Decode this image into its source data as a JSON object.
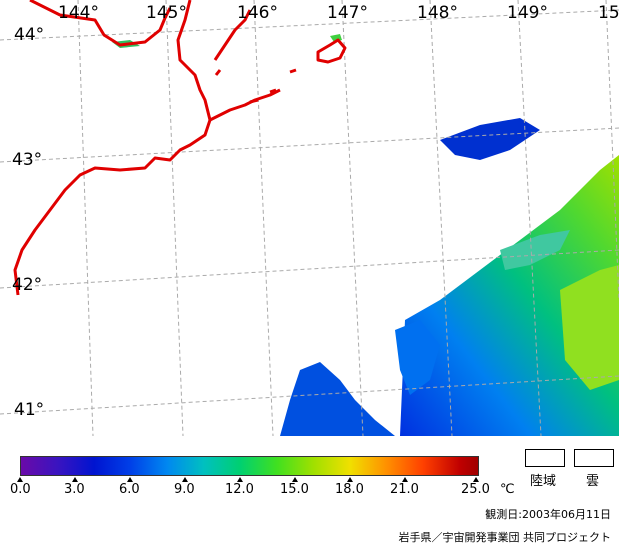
{
  "map": {
    "lat_labels": [
      "44°",
      "43°",
      "42°",
      "41°"
    ],
    "lon_labels": [
      "144°",
      "145°",
      "146°",
      "147°",
      "148°",
      "149°",
      "15"
    ],
    "colors": {
      "coastline": "#e00000",
      "grid": "#aaaaaa",
      "sst_cold": "#0040e8",
      "sst_mid": "#00c070",
      "sst_warm": "#a0e000"
    }
  },
  "colorbar": {
    "ticks": [
      "0.0",
      "3.0",
      "6.0",
      "9.0",
      "12.0",
      "15.0",
      "18.0",
      "21.0",
      "25.0"
    ],
    "unit": "℃"
  },
  "legend": {
    "land_label": "陸域",
    "cloud_label": "雲"
  },
  "footer": {
    "observation_date": "観測日:2003年06月11日",
    "credit": "岩手県／宇宙開発事業団  共同プロジェクト"
  }
}
